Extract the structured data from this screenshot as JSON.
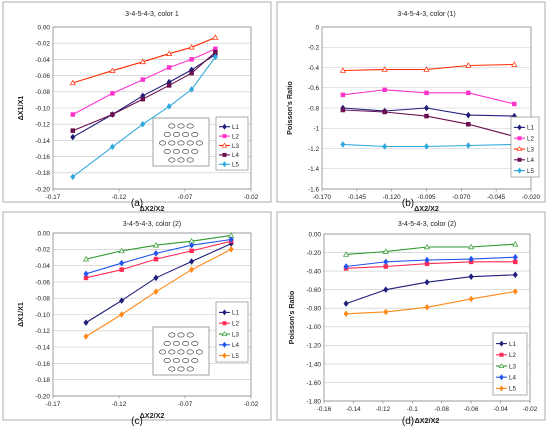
{
  "chart_data": [
    {
      "panel": "(a)",
      "type": "line",
      "title": "3-4-5-4-3, color 1",
      "xlabel": "ΔX2/X2",
      "ylabel": "ΔX1/X1",
      "xlim": [
        -0.17,
        -0.02
      ],
      "ylim": [
        -0.2,
        0.0
      ],
      "xticks": [
        -0.17,
        -0.12,
        -0.07,
        -0.02
      ],
      "xtick_labels": [
        "-0.17",
        "-0.12",
        "-0.07",
        "-0.02"
      ],
      "yticks": [
        0.0,
        -0.02,
        -0.04,
        -0.06,
        -0.08,
        -0.1,
        -0.12,
        -0.14,
        -0.16,
        -0.18,
        -0.2
      ],
      "ytick_labels": [
        "0.00",
        "-0.02",
        "-0.04",
        "-0.06",
        "-0.08",
        "-0.10",
        "-0.12",
        "-0.14",
        "-0.16",
        "-0.18",
        "-0.20"
      ],
      "legend_position": "right",
      "has_inset": true,
      "series": [
        {
          "name": "L1",
          "color": "#1f1f7a",
          "marker": "diamond",
          "data": [
            [
              -0.155,
              -0.136
            ],
            [
              -0.125,
              -0.108
            ],
            [
              -0.102,
              -0.085
            ],
            [
              -0.082,
              -0.068
            ],
            [
              -0.065,
              -0.053
            ],
            [
              -0.047,
              -0.034
            ]
          ]
        },
        {
          "name": "L2",
          "color": "#ff33cc",
          "marker": "square",
          "data": [
            [
              -0.155,
              -0.108
            ],
            [
              -0.125,
              -0.082
            ],
            [
              -0.102,
              -0.065
            ],
            [
              -0.082,
              -0.05
            ],
            [
              -0.065,
              -0.04
            ],
            [
              -0.047,
              -0.027
            ]
          ]
        },
        {
          "name": "L3",
          "color": "#ff2a00",
          "marker": "triangle",
          "data": [
            [
              -0.155,
              -0.069
            ],
            [
              -0.125,
              -0.054
            ],
            [
              -0.102,
              -0.043
            ],
            [
              -0.082,
              -0.033
            ],
            [
              -0.065,
              -0.025
            ],
            [
              -0.047,
              -0.013
            ]
          ]
        },
        {
          "name": "L4",
          "color": "#6b0f4f",
          "marker": "square",
          "data": [
            [
              -0.155,
              -0.128
            ],
            [
              -0.125,
              -0.108
            ],
            [
              -0.102,
              -0.089
            ],
            [
              -0.082,
              -0.072
            ],
            [
              -0.065,
              -0.057
            ],
            [
              -0.047,
              -0.031
            ]
          ]
        },
        {
          "name": "L5",
          "color": "#33aadd",
          "marker": "diamond",
          "data": [
            [
              -0.155,
              -0.185
            ],
            [
              -0.125,
              -0.148
            ],
            [
              -0.102,
              -0.12
            ],
            [
              -0.082,
              -0.098
            ],
            [
              -0.065,
              -0.077
            ],
            [
              -0.047,
              -0.037
            ]
          ]
        }
      ]
    },
    {
      "panel": "(b)",
      "type": "line",
      "title": "3-4-5-4-3, color (1)",
      "xlabel": "ΔX2/X2",
      "ylabel": "Poisson's Ratio",
      "xlim": [
        -0.17,
        -0.02
      ],
      "ylim": [
        -1.6,
        0.0
      ],
      "xticks": [
        -0.17,
        -0.145,
        -0.12,
        -0.095,
        -0.07,
        -0.045,
        -0.02
      ],
      "xtick_labels": [
        "-0.170",
        "-0.145",
        "-0.120",
        "-0.095",
        "-0.070",
        "-0.045",
        "-0.020"
      ],
      "yticks": [
        0.0,
        -0.2,
        -0.4,
        -0.6,
        -0.8,
        -1.0,
        -1.2,
        -1.4,
        -1.6
      ],
      "ytick_labels": [
        "0",
        "-0.2",
        "-0.4",
        "-0.6",
        "-0.8",
        "-1",
        "-1.2",
        "-1.4",
        "-1.6"
      ],
      "legend_position": "right",
      "series": [
        {
          "name": "L1",
          "color": "#1f1f7a",
          "marker": "diamond",
          "data": [
            [
              -0.155,
              -0.8
            ],
            [
              -0.125,
              -0.83
            ],
            [
              -0.095,
              -0.8
            ],
            [
              -0.065,
              -0.87
            ],
            [
              -0.032,
              -0.88
            ]
          ]
        },
        {
          "name": "L2",
          "color": "#ff33cc",
          "marker": "square",
          "data": [
            [
              -0.155,
              -0.67
            ],
            [
              -0.125,
              -0.62
            ],
            [
              -0.095,
              -0.65
            ],
            [
              -0.065,
              -0.65
            ],
            [
              -0.032,
              -0.76
            ]
          ]
        },
        {
          "name": "L3",
          "color": "#ff2a00",
          "marker": "triangle",
          "data": [
            [
              -0.155,
              -0.43
            ],
            [
              -0.125,
              -0.42
            ],
            [
              -0.095,
              -0.42
            ],
            [
              -0.065,
              -0.38
            ],
            [
              -0.032,
              -0.37
            ]
          ]
        },
        {
          "name": "L4",
          "color": "#6b0f4f",
          "marker": "square",
          "data": [
            [
              -0.155,
              -0.82
            ],
            [
              -0.125,
              -0.84
            ],
            [
              -0.095,
              -0.88
            ],
            [
              -0.065,
              -0.96
            ],
            [
              -0.032,
              -1.08
            ]
          ]
        },
        {
          "name": "L5",
          "color": "#33aadd",
          "marker": "diamond",
          "data": [
            [
              -0.155,
              -1.16
            ],
            [
              -0.125,
              -1.18
            ],
            [
              -0.095,
              -1.18
            ],
            [
              -0.065,
              -1.17
            ],
            [
              -0.032,
              -1.16
            ]
          ]
        }
      ]
    },
    {
      "panel": "(c)",
      "type": "line",
      "title": "3-4-5-4-3, color (2)",
      "xlabel": "ΔX2/X2",
      "ylabel": "ΔX1/X1",
      "xlim": [
        -0.17,
        -0.02
      ],
      "ylim": [
        -0.2,
        0.0
      ],
      "xticks": [
        -0.17,
        -0.12,
        -0.07,
        -0.02
      ],
      "xtick_labels": [
        "-0.17",
        "-0.12",
        "-0.07",
        "-0.02"
      ],
      "yticks": [
        0.0,
        -0.02,
        -0.04,
        -0.06,
        -0.08,
        -0.1,
        -0.12,
        -0.14,
        -0.16,
        -0.18,
        -0.2
      ],
      "ytick_labels": [
        "0.00",
        "-0.02",
        "-0.04",
        "-0.06",
        "-0.08",
        "-0.10",
        "-0.12",
        "-0.14",
        "-0.16",
        "-0.18",
        "-0.20"
      ],
      "legend_position": "right",
      "has_inset": true,
      "series": [
        {
          "name": "L1",
          "color": "#1f1f7a",
          "marker": "diamond",
          "data": [
            [
              -0.145,
              -0.11
            ],
            [
              -0.118,
              -0.083
            ],
            [
              -0.092,
              -0.055
            ],
            [
              -0.065,
              -0.035
            ],
            [
              -0.035,
              -0.013
            ]
          ]
        },
        {
          "name": "L2",
          "color": "#ff2a55",
          "marker": "square",
          "data": [
            [
              -0.145,
              -0.055
            ],
            [
              -0.118,
              -0.045
            ],
            [
              -0.092,
              -0.032
            ],
            [
              -0.065,
              -0.022
            ],
            [
              -0.035,
              -0.01
            ]
          ]
        },
        {
          "name": "L3",
          "color": "#2e9a2e",
          "marker": "triangle",
          "data": [
            [
              -0.145,
              -0.032
            ],
            [
              -0.118,
              -0.022
            ],
            [
              -0.092,
              -0.015
            ],
            [
              -0.065,
              -0.01
            ],
            [
              -0.035,
              -0.003
            ]
          ]
        },
        {
          "name": "L4",
          "color": "#2255ee",
          "marker": "diamond",
          "data": [
            [
              -0.145,
              -0.05
            ],
            [
              -0.118,
              -0.037
            ],
            [
              -0.092,
              -0.025
            ],
            [
              -0.065,
              -0.015
            ],
            [
              -0.035,
              -0.008
            ]
          ]
        },
        {
          "name": "L5",
          "color": "#ff8a1a",
          "marker": "diamond",
          "data": [
            [
              -0.145,
              -0.127
            ],
            [
              -0.118,
              -0.1
            ],
            [
              -0.092,
              -0.072
            ],
            [
              -0.065,
              -0.045
            ],
            [
              -0.035,
              -0.02
            ]
          ]
        }
      ]
    },
    {
      "panel": "(d)",
      "type": "line",
      "title": "3-4-5-4-3, color (2)",
      "xlabel": "ΔX2/X2",
      "ylabel": "Poisson's Ratio",
      "xlim": [
        -0.16,
        -0.02
      ],
      "ylim": [
        -1.8,
        0.0
      ],
      "xticks": [
        -0.16,
        -0.14,
        -0.12,
        -0.1,
        -0.08,
        -0.06,
        -0.04,
        -0.02
      ],
      "xtick_labels": [
        "-0.16",
        "-0.14",
        "-0.12",
        "-0.1",
        "-0.08",
        "-0.06",
        "-0.04",
        "-0.02"
      ],
      "yticks": [
        0.0,
        -0.2,
        -0.4,
        -0.6,
        -0.8,
        -1.0,
        -1.2,
        -1.4,
        -1.6,
        -1.8
      ],
      "ytick_labels": [
        "0.00",
        "-0.20",
        "-0.40",
        "-0.60",
        "-0.80",
        "-1.00",
        "-1.20",
        "-1.40",
        "-1.60",
        "-1.80"
      ],
      "legend_position": "right",
      "series": [
        {
          "name": "L1",
          "color": "#1f1f7a",
          "marker": "diamond",
          "data": [
            [
              -0.145,
              -0.75
            ],
            [
              -0.118,
              -0.6
            ],
            [
              -0.09,
              -0.52
            ],
            [
              -0.06,
              -0.46
            ],
            [
              -0.03,
              -0.44
            ]
          ]
        },
        {
          "name": "L2",
          "color": "#ff2a55",
          "marker": "square",
          "data": [
            [
              -0.145,
              -0.37
            ],
            [
              -0.118,
              -0.35
            ],
            [
              -0.09,
              -0.32
            ],
            [
              -0.06,
              -0.3
            ],
            [
              -0.03,
              -0.3
            ]
          ]
        },
        {
          "name": "L3",
          "color": "#2e9a2e",
          "marker": "triangle",
          "data": [
            [
              -0.145,
              -0.22
            ],
            [
              -0.118,
              -0.19
            ],
            [
              -0.09,
              -0.14
            ],
            [
              -0.06,
              -0.14
            ],
            [
              -0.03,
              -0.11
            ]
          ]
        },
        {
          "name": "L4",
          "color": "#2255ee",
          "marker": "diamond",
          "data": [
            [
              -0.145,
              -0.35
            ],
            [
              -0.118,
              -0.3
            ],
            [
              -0.09,
              -0.28
            ],
            [
              -0.06,
              -0.27
            ],
            [
              -0.03,
              -0.25
            ]
          ]
        },
        {
          "name": "L5",
          "color": "#ff8a1a",
          "marker": "diamond",
          "data": [
            [
              -0.145,
              -0.86
            ],
            [
              -0.118,
              -0.84
            ],
            [
              -0.09,
              -0.79
            ],
            [
              -0.06,
              -0.7
            ],
            [
              -0.03,
              -0.62
            ]
          ]
        }
      ]
    }
  ]
}
